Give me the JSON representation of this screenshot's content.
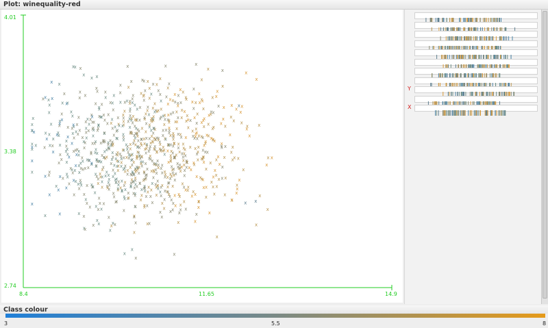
{
  "window": {
    "title": "Plot: winequality-red"
  },
  "plot": {
    "x_axis": {
      "min_label": "8.4",
      "mid_label": "11.65",
      "max_label": "14.9",
      "min": 8.4,
      "max": 14.9
    },
    "y_axis": {
      "top_label": "4.01",
      "mid_label": "3.38",
      "bottom_label": "2.74",
      "min": 2.74,
      "max": 4.01
    },
    "axis_color": "#22cc22",
    "marker": "x"
  },
  "attribute_panel": {
    "y_marker": "Y",
    "x_marker": "X",
    "rows": 11
  },
  "class_colour": {
    "label": "Class colour",
    "min_label": "3",
    "mid_label": "5.5",
    "max_label": "8",
    "low_color": "#1f7fd8",
    "mid_color": "#7a8a86",
    "high_color": "#e59a1a"
  }
}
